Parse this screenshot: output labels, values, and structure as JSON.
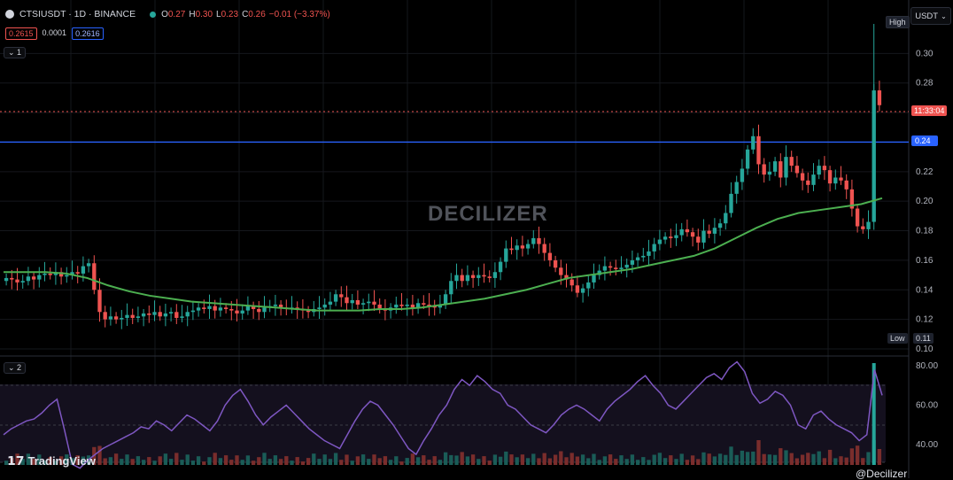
{
  "header": {
    "symbol_line": "CTSIUSDT · 1D · BINANCE",
    "ohlc": [
      {
        "k": "O",
        "v": "0.27"
      },
      {
        "k": "H",
        "v": "0.30"
      },
      {
        "k": "L",
        "v": "0.23"
      },
      {
        "k": "C",
        "v": "0.26"
      },
      {
        "k": "",
        "v": "−0.01 (−3.37%)"
      }
    ]
  },
  "prices": {
    "bid": "0.2615",
    "spread": "0.0001",
    "ask": "0.2616"
  },
  "panes": {
    "main_btn": "1",
    "rsi_btn": "2"
  },
  "currency": "USDT",
  "watermark": "DECILIZER",
  "brand": "TradingView",
  "brand_right": "@Decilizer",
  "price_axis": {
    "ticks": [
      "0.30",
      "0.28",
      "0.26",
      "0.24",
      "0.22",
      "0.20",
      "0.18",
      "0.16",
      "0.14",
      "0.12",
      "0.10"
    ],
    "high_label": "High",
    "low_label": "Low",
    "low_value": "0.11",
    "hline_value": "0.24",
    "countdown": "11:33:04"
  },
  "rsi_axis": {
    "ticks": [
      "80.00",
      "60.00",
      "40.00"
    ]
  },
  "colors": {
    "up": "#26a69a",
    "down": "#ef5350",
    "ma": "#4caf50",
    "rsi": "#7e57c2",
    "hline": "#2962ff"
  },
  "chart_data": {
    "type": "candlestick",
    "symbol": "CTSIUSDT",
    "interval": "1D",
    "ylim": [
      0.1,
      0.32
    ],
    "series": [
      {
        "name": "price",
        "values": [
          0.148,
          0.147,
          0.145,
          0.146,
          0.149,
          0.147,
          0.15,
          0.151,
          0.15,
          0.152,
          0.149,
          0.15,
          0.152,
          0.151,
          0.156,
          0.158,
          0.14,
          0.125,
          0.12,
          0.122,
          0.12,
          0.121,
          0.123,
          0.121,
          0.122,
          0.124,
          0.123,
          0.125,
          0.122,
          0.124,
          0.125,
          0.121,
          0.122,
          0.125,
          0.126,
          0.128,
          0.127,
          0.129,
          0.126,
          0.128,
          0.127,
          0.126,
          0.124,
          0.126,
          0.129,
          0.127,
          0.125,
          0.128,
          0.129,
          0.13,
          0.128,
          0.127,
          0.128,
          0.127,
          0.126,
          0.125,
          0.127,
          0.128,
          0.13,
          0.132,
          0.137,
          0.135,
          0.131,
          0.133,
          0.13,
          0.131,
          0.132,
          0.13,
          0.127,
          0.126,
          0.128,
          0.13,
          0.129,
          0.13,
          0.128,
          0.131,
          0.13,
          0.129,
          0.128,
          0.13,
          0.137,
          0.146,
          0.15,
          0.146,
          0.15,
          0.148,
          0.15,
          0.149,
          0.148,
          0.152,
          0.159,
          0.168,
          0.167,
          0.17,
          0.168,
          0.171,
          0.175,
          0.171,
          0.165,
          0.16,
          0.155,
          0.15,
          0.147,
          0.143,
          0.138,
          0.141,
          0.145,
          0.15,
          0.153,
          0.156,
          0.155,
          0.154,
          0.155,
          0.157,
          0.16,
          0.162,
          0.163,
          0.166,
          0.171,
          0.174,
          0.176,
          0.175,
          0.177,
          0.181,
          0.179,
          0.176,
          0.172,
          0.18,
          0.178,
          0.182,
          0.185,
          0.192,
          0.205,
          0.213,
          0.222,
          0.235,
          0.244,
          0.225,
          0.218,
          0.22,
          0.227,
          0.216,
          0.23,
          0.224,
          0.219,
          0.214,
          0.211,
          0.218,
          0.224,
          0.221,
          0.212,
          0.216,
          0.214,
          0.208,
          0.195,
          0.183,
          0.181,
          0.186,
          0.275,
          0.265
        ]
      }
    ],
    "moving_average": [
      0.152,
      0.152,
      0.152,
      0.151,
      0.148,
      0.143,
      0.139,
      0.136,
      0.134,
      0.132,
      0.131,
      0.13,
      0.129,
      0.128,
      0.127,
      0.126,
      0.126,
      0.126,
      0.127,
      0.127,
      0.128,
      0.13,
      0.132,
      0.134,
      0.137,
      0.14,
      0.144,
      0.148,
      0.15,
      0.152,
      0.154,
      0.157,
      0.16,
      0.163,
      0.168,
      0.175,
      0.182,
      0.188,
      0.192,
      0.194,
      0.196,
      0.198,
      0.202
    ],
    "rsi": [
      45,
      48,
      50,
      52,
      53,
      56,
      60,
      63,
      47,
      30,
      28,
      32,
      35,
      38,
      40,
      42,
      44,
      46,
      49,
      48,
      52,
      50,
      47,
      51,
      55,
      53,
      50,
      47,
      52,
      60,
      65,
      68,
      62,
      55,
      50,
      54,
      57,
      60,
      56,
      52,
      48,
      45,
      42,
      40,
      38,
      45,
      52,
      58,
      62,
      60,
      55,
      50,
      44,
      38,
      35,
      42,
      48,
      55,
      60,
      68,
      73,
      70,
      75,
      72,
      68,
      66,
      60,
      58,
      54,
      50,
      48,
      46,
      50,
      55,
      58,
      60,
      58,
      55,
      52,
      58,
      62,
      65,
      68,
      72,
      75,
      70,
      66,
      60,
      58,
      62,
      66,
      70,
      74,
      76,
      73,
      79,
      82,
      77,
      66,
      61,
      63,
      67,
      65,
      60,
      50,
      48,
      55,
      57,
      53,
      50,
      48,
      46,
      42,
      45,
      78,
      65
    ]
  }
}
